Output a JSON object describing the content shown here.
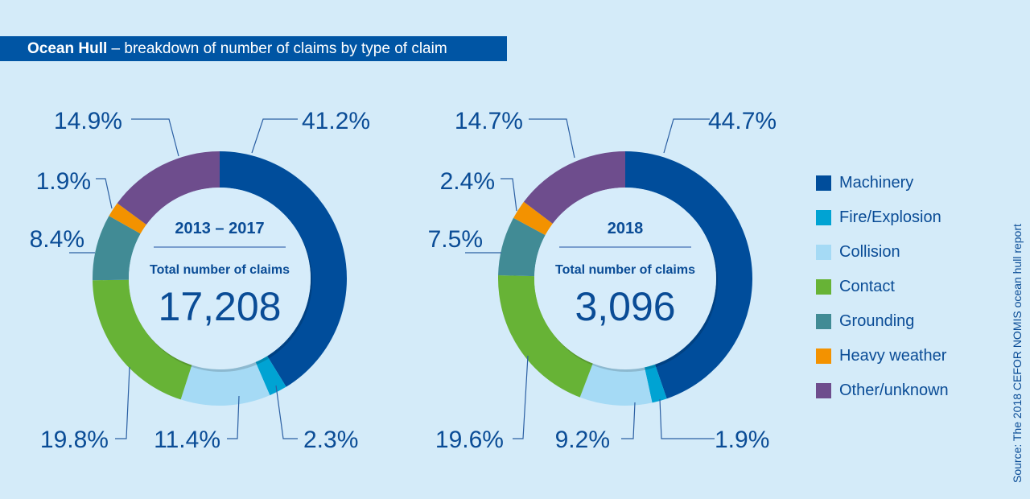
{
  "title": {
    "bold": "Ocean Hull",
    "rest": " – breakdown of number of claims by type of claim"
  },
  "categories": [
    "Machinery",
    "Fire/Explosion",
    "Collision",
    "Contact",
    "Grounding",
    "Heavy weather",
    "Other/unknown"
  ],
  "colors": [
    "#004d9b",
    "#00a3d3",
    "#a5daf5",
    "#67b336",
    "#418b95",
    "#f39200",
    "#6e4d8d"
  ],
  "legend": [
    {
      "label": "Machinery",
      "color": "#004d9b"
    },
    {
      "label": "Fire/Explosion",
      "color": "#00a3d3"
    },
    {
      "label": "Collision",
      "color": "#a5daf5"
    },
    {
      "label": "Contact",
      "color": "#67b336"
    },
    {
      "label": "Grounding",
      "color": "#418b95"
    },
    {
      "label": "Heavy weather",
      "color": "#f39200"
    },
    {
      "label": "Other/unknown",
      "color": "#6e4d8d"
    }
  ],
  "source": "Source: The 2018 CEFOR NOMIS ocean hull report",
  "chart_data": [
    {
      "type": "pie",
      "title": "2013 – 2017",
      "subtitle": "Total number of claims",
      "total": "17,208",
      "categories": [
        "Machinery",
        "Fire/Explosion",
        "Collision",
        "Contact",
        "Grounding",
        "Heavy weather",
        "Other/unknown"
      ],
      "values": [
        41.2,
        2.3,
        11.4,
        19.8,
        8.4,
        1.9,
        14.9
      ],
      "labels": [
        "41.2%",
        "2.3%",
        "11.4%",
        "19.8%",
        "8.4%",
        "1.9%",
        "14.9%"
      ]
    },
    {
      "type": "pie",
      "title": "2018",
      "subtitle": "Total number of claims",
      "total": "3,096",
      "categories": [
        "Machinery",
        "Fire/Explosion",
        "Collision",
        "Contact",
        "Grounding",
        "Heavy weather",
        "Other/unknown"
      ],
      "values": [
        44.7,
        1.9,
        9.2,
        19.6,
        7.5,
        2.4,
        14.7
      ],
      "labels": [
        "44.7%",
        "1.9%",
        "9.2%",
        "19.6%",
        "7.5%",
        "2.4%",
        "14.7%"
      ]
    }
  ]
}
